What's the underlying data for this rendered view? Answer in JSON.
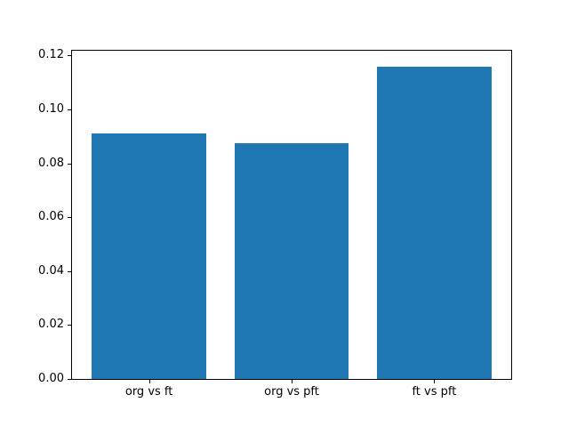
{
  "chart_data": {
    "type": "bar",
    "title": "",
    "xlabel": "",
    "ylabel": "",
    "categories": [
      "org vs ft",
      "org vs pft",
      "ft vs pft"
    ],
    "values": [
      0.0912,
      0.0876,
      0.116
    ],
    "x_positions": [
      0,
      1,
      2
    ],
    "bar_width": 0.8,
    "xlim": [
      -0.54,
      2.54
    ],
    "ylim": [
      0,
      0.1218
    ],
    "ytick_values": [
      0.0,
      0.02,
      0.04,
      0.06,
      0.08,
      0.1,
      0.12
    ],
    "ytick_labels": [
      "0.00",
      "0.02",
      "0.04",
      "0.06",
      "0.08",
      "0.10",
      "0.12"
    ],
    "grid": false,
    "legend": null,
    "colors": {
      "bar_fill": "#1f77b4",
      "spine": "#000000",
      "text": "#000000",
      "background": "#ffffff"
    }
  }
}
